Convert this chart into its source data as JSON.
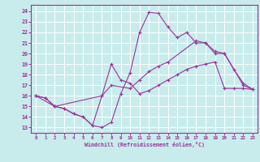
{
  "bg_color": "#c8ecec",
  "line_color": "#993399",
  "grid_color": "#ffffff",
  "xlabel": "Windchill (Refroidissement éolien,°C)",
  "xlim": [
    -0.5,
    23.5
  ],
  "ylim": [
    12.5,
    24.6
  ],
  "yticks": [
    13,
    14,
    15,
    16,
    17,
    18,
    19,
    20,
    21,
    22,
    23,
    24
  ],
  "xticks": [
    0,
    1,
    2,
    3,
    4,
    5,
    6,
    7,
    8,
    9,
    10,
    11,
    12,
    13,
    14,
    15,
    16,
    17,
    18,
    19,
    20,
    21,
    22,
    23
  ],
  "curve1_x": [
    0,
    1,
    2,
    3,
    4,
    5,
    6,
    7,
    8,
    9,
    10,
    11,
    12,
    13,
    14,
    15,
    16,
    17,
    18,
    19,
    20,
    21,
    22,
    23
  ],
  "curve1_y": [
    16.0,
    15.8,
    15.0,
    14.8,
    14.3,
    14.0,
    13.2,
    13.0,
    13.5,
    16.2,
    18.2,
    22.0,
    23.9,
    23.8,
    22.5,
    21.5,
    22.0,
    21.0,
    21.0,
    20.0,
    20.0,
    18.5,
    17.2,
    16.6
  ],
  "curve2_x": [
    0,
    1,
    2,
    3,
    4,
    5,
    6,
    7,
    8,
    9,
    10,
    11,
    12,
    13,
    14,
    15,
    16,
    17,
    18,
    19,
    20,
    21,
    22,
    23
  ],
  "curve2_y": [
    16.0,
    15.8,
    15.0,
    14.8,
    14.3,
    14.0,
    13.2,
    16.0,
    19.0,
    17.5,
    17.2,
    16.2,
    16.5,
    17.0,
    17.5,
    18.0,
    18.5,
    18.8,
    19.0,
    19.2,
    16.7,
    16.7,
    16.7,
    16.6
  ],
  "curve3_x": [
    0,
    2,
    7,
    8,
    10,
    11,
    12,
    13,
    14,
    17,
    18,
    19,
    20,
    22,
    23
  ],
  "curve3_y": [
    16.0,
    15.0,
    16.0,
    17.0,
    16.7,
    17.5,
    18.3,
    18.8,
    19.2,
    21.2,
    21.0,
    20.2,
    20.0,
    17.0,
    16.6
  ]
}
